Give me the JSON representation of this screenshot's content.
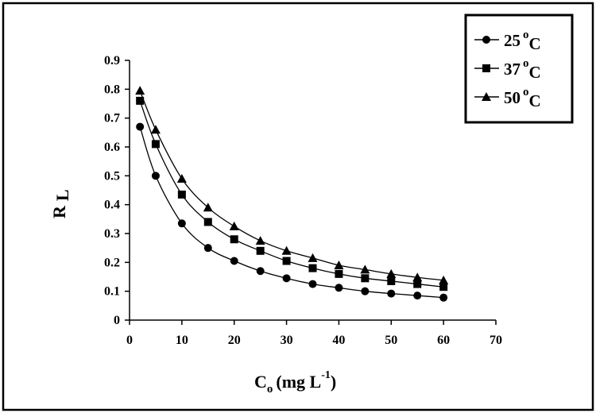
{
  "chart_data": {
    "type": "line",
    "xlabel": {
      "main": "C",
      "sub": "o",
      "rest": "(mg L",
      "sup": "-1",
      "close": ")"
    },
    "ylabel": {
      "main": "R",
      "sub": "L"
    },
    "xlim": [
      0,
      70
    ],
    "ylim": [
      0,
      0.9
    ],
    "xticks": [
      "0",
      "10",
      "20",
      "30",
      "40",
      "50",
      "60",
      "70"
    ],
    "yticks": [
      "0",
      "0.1",
      "0.2",
      "0.3",
      "0.4",
      "0.5",
      "0.6",
      "0.7",
      "0.8",
      "0.9"
    ],
    "grid": false,
    "legend_position": "top-right",
    "x": [
      2,
      5,
      10,
      15,
      20,
      25,
      30,
      35,
      40,
      45,
      50,
      55,
      60
    ],
    "series": [
      {
        "name": "25",
        "sup": "o",
        "unit": "C",
        "marker": "circle",
        "values": [
          0.67,
          0.5,
          0.335,
          0.25,
          0.205,
          0.17,
          0.145,
          0.125,
          0.112,
          0.1,
          0.092,
          0.085,
          0.078
        ]
      },
      {
        "name": "37",
        "sup": "o",
        "unit": "C",
        "marker": "square",
        "values": [
          0.76,
          0.61,
          0.435,
          0.34,
          0.28,
          0.24,
          0.205,
          0.18,
          0.16,
          0.145,
          0.135,
          0.125,
          0.115
        ]
      },
      {
        "name": "50",
        "sup": "o",
        "unit": "C",
        "marker": "triangle",
        "values": [
          0.795,
          0.66,
          0.49,
          0.39,
          0.325,
          0.275,
          0.24,
          0.215,
          0.19,
          0.175,
          0.16,
          0.148,
          0.138
        ]
      }
    ]
  }
}
